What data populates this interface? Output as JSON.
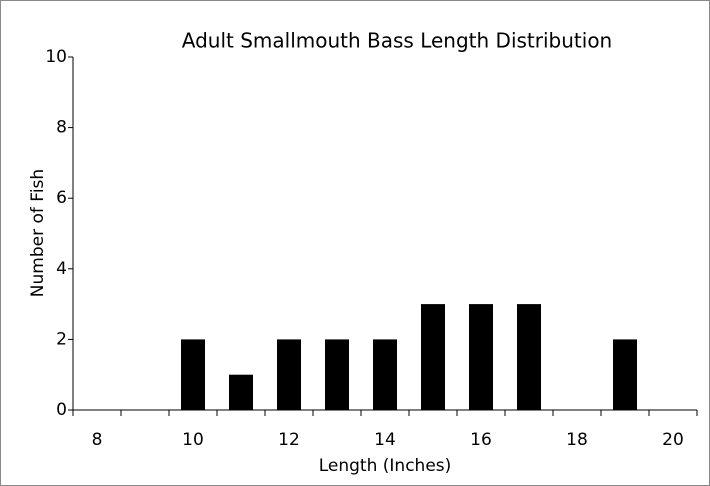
{
  "chart_data": {
    "type": "bar",
    "title": "Adult Smallmouth Bass Length Distribution",
    "x_label": "Length (Inches)",
    "y_label": "Number of Fish",
    "categories": [
      "8",
      null,
      "10",
      null,
      "12",
      null,
      "14",
      null,
      "16",
      null,
      "18",
      null,
      "20"
    ],
    "values": [
      0,
      0,
      2,
      1,
      2,
      2,
      2,
      3,
      3,
      3,
      0,
      2,
      0
    ],
    "color": "#000000",
    "ylim": [
      0,
      10
    ],
    "yticks": [
      0,
      2,
      4,
      6,
      8,
      10
    ],
    "grid": false
  }
}
